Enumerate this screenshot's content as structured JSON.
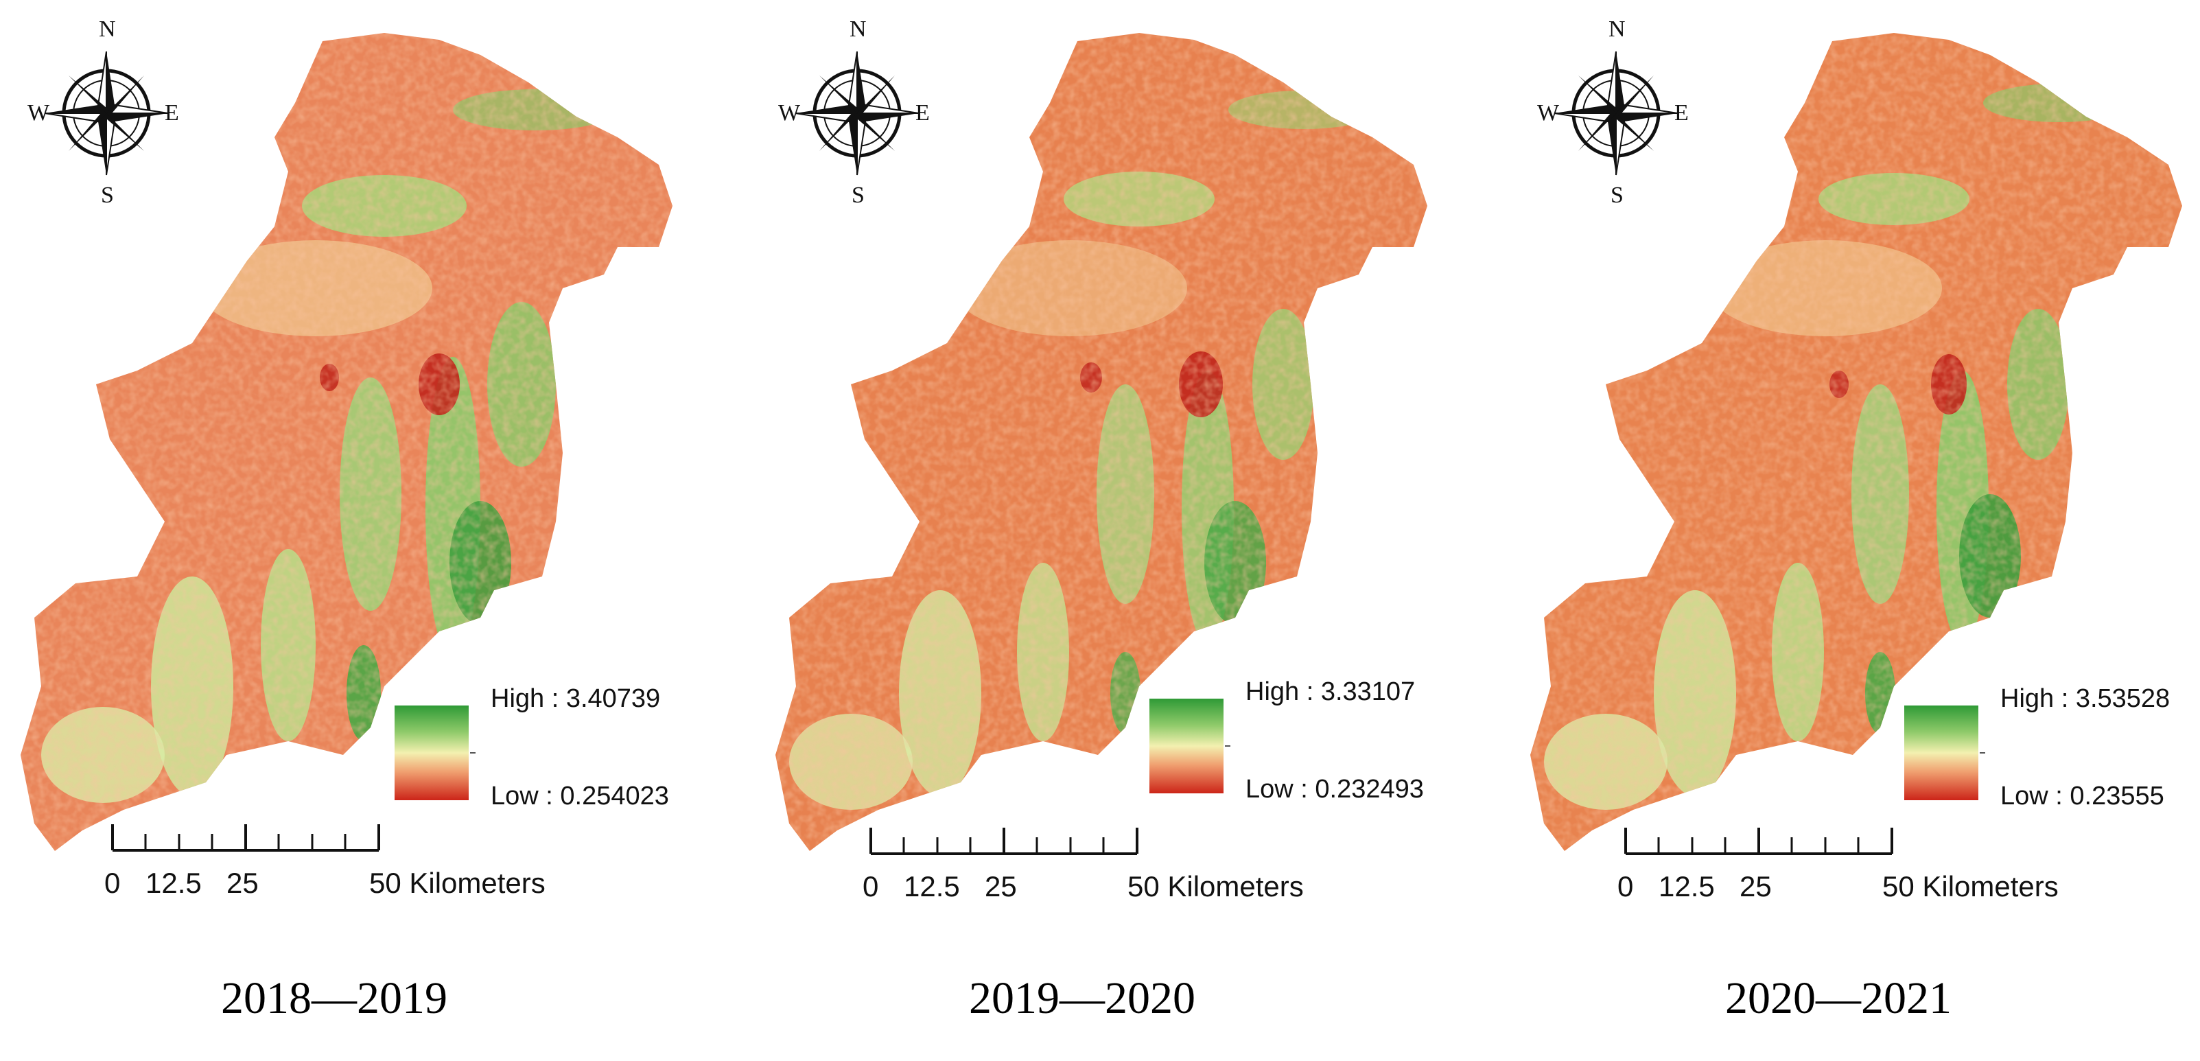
{
  "compass": {
    "n": "N",
    "s": "S",
    "e": "E",
    "w": "W"
  },
  "scale": {
    "labels": [
      "0",
      "12.5",
      "25",
      "50 Kilometers"
    ]
  },
  "colors": {
    "high": "#2f9a36",
    "mid": "#f3f0b0",
    "low": "#cc2418",
    "base": "#e9855a"
  },
  "panels": [
    {
      "period": "2018—2019",
      "legend": {
        "high": "High : 3.40739",
        "low": "Low : 0.254023"
      }
    },
    {
      "period": "2019—2020",
      "legend": {
        "high": "High : 3.33107",
        "low": "Low : 0.232493"
      }
    },
    {
      "period": "2020—2021",
      "legend": {
        "high": "High : 3.53528",
        "low": "Low : 0.23555"
      }
    }
  ]
}
